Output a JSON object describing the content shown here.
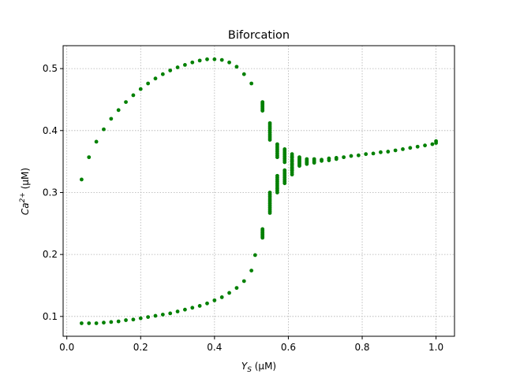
{
  "chart_data": {
    "type": "scatter",
    "title": "Biforcation",
    "xlabel_main": "Y",
    "xlabel_sub": "S",
    "xlabel_units": " (μM)",
    "ylabel_main": "Ca",
    "ylabel_sup": "2+",
    "ylabel_units": " (μM)",
    "xlim": [
      -0.01,
      1.05
    ],
    "ylim": [
      0.068,
      0.537
    ],
    "xticks": [
      0.0,
      0.2,
      0.4,
      0.6,
      0.8,
      1.0
    ],
    "xtick_labels": [
      "0.0",
      "0.2",
      "0.4",
      "0.6",
      "0.8",
      "1.0"
    ],
    "yticks": [
      0.1,
      0.2,
      0.3,
      0.4,
      0.5
    ],
    "ytick_labels": [
      "0.1",
      "0.2",
      "0.3",
      "0.4",
      "0.5"
    ],
    "grid": true,
    "marker_color": "#008000",
    "series": [
      {
        "x": [
          0.04,
          0.06,
          0.08,
          0.1,
          0.12,
          0.14,
          0.16,
          0.18,
          0.2,
          0.22,
          0.24,
          0.26,
          0.28,
          0.3,
          0.32,
          0.34,
          0.36,
          0.38,
          0.4,
          0.42,
          0.44,
          0.46,
          0.48,
          0.5
        ],
        "y": [
          0.321,
          0.357,
          0.382,
          0.402,
          0.419,
          0.433,
          0.446,
          0.457,
          0.467,
          0.476,
          0.484,
          0.491,
          0.497,
          0.502,
          0.506,
          0.51,
          0.513,
          0.515,
          0.515,
          0.514,
          0.51,
          0.503,
          0.491,
          0.476
        ]
      },
      {
        "x": [
          0.04,
          0.06,
          0.08,
          0.1,
          0.12,
          0.14,
          0.16,
          0.18,
          0.2,
          0.22,
          0.24,
          0.26,
          0.28,
          0.3,
          0.32,
          0.34,
          0.36,
          0.38,
          0.4,
          0.42,
          0.44,
          0.46,
          0.48,
          0.5,
          0.51
        ],
        "y": [
          0.089,
          0.089,
          0.089,
          0.09,
          0.091,
          0.092,
          0.094,
          0.095,
          0.097,
          0.099,
          0.101,
          0.103,
          0.105,
          0.108,
          0.111,
          0.114,
          0.117,
          0.121,
          0.126,
          0.131,
          0.138,
          0.146,
          0.157,
          0.174,
          0.199
        ]
      },
      {
        "x": [
          0.53,
          0.53,
          0.53,
          0.53,
          0.53,
          0.53,
          0.53,
          0.53,
          0.53,
          0.53,
          0.53,
          0.53,
          0.53,
          0.53,
          0.53,
          0.53
        ],
        "y": [
          0.436,
          0.438,
          0.44,
          0.442,
          0.444,
          0.446,
          0.235,
          0.233,
          0.231,
          0.229,
          0.237,
          0.239,
          0.434,
          0.432,
          0.227,
          0.241
        ]
      },
      {
        "x": [
          0.55,
          0.55,
          0.55,
          0.55,
          0.55,
          0.55,
          0.55,
          0.55,
          0.55,
          0.55,
          0.55,
          0.55,
          0.55,
          0.55,
          0.55,
          0.55,
          0.55,
          0.55,
          0.55,
          0.55,
          0.55,
          0.55
        ],
        "y": [
          0.412,
          0.409,
          0.406,
          0.403,
          0.4,
          0.397,
          0.394,
          0.391,
          0.388,
          0.385,
          0.27,
          0.273,
          0.276,
          0.279,
          0.282,
          0.285,
          0.288,
          0.291,
          0.294,
          0.297,
          0.3,
          0.267
        ]
      },
      {
        "x": [
          0.57,
          0.57,
          0.57,
          0.57,
          0.57,
          0.57,
          0.57,
          0.57,
          0.57,
          0.57,
          0.57,
          0.57,
          0.57,
          0.57,
          0.57,
          0.57,
          0.57,
          0.57
        ],
        "y": [
          0.378,
          0.375,
          0.372,
          0.369,
          0.366,
          0.363,
          0.36,
          0.357,
          0.3,
          0.303,
          0.306,
          0.309,
          0.312,
          0.315,
          0.318,
          0.321,
          0.324,
          0.327
        ]
      },
      {
        "x": [
          0.59,
          0.59,
          0.59,
          0.59,
          0.59,
          0.59,
          0.59,
          0.59,
          0.59,
          0.59,
          0.59,
          0.59,
          0.59,
          0.59,
          0.59,
          0.59
        ],
        "y": [
          0.37,
          0.367,
          0.364,
          0.361,
          0.358,
          0.355,
          0.352,
          0.349,
          0.315,
          0.318,
          0.321,
          0.324,
          0.327,
          0.33,
          0.333,
          0.336
        ]
      },
      {
        "x": [
          0.61,
          0.61,
          0.61,
          0.61,
          0.61,
          0.61,
          0.61,
          0.61,
          0.61,
          0.61,
          0.61,
          0.61,
          0.61,
          0.61,
          0.61,
          0.61,
          0.61
        ],
        "y": [
          0.362,
          0.359,
          0.356,
          0.353,
          0.35,
          0.347,
          0.344,
          0.341,
          0.338,
          0.335,
          0.332,
          0.329,
          0.345,
          0.34,
          0.336,
          0.351,
          0.357
        ]
      },
      {
        "x": [
          0.63,
          0.63,
          0.63,
          0.63,
          0.63,
          0.63,
          0.63,
          0.63
        ],
        "y": [
          0.357,
          0.355,
          0.353,
          0.351,
          0.349,
          0.347,
          0.345,
          0.343
        ]
      },
      {
        "x": [
          0.65,
          0.65,
          0.65,
          0.65,
          0.65,
          0.67,
          0.67,
          0.67,
          0.67
        ],
        "y": [
          0.354,
          0.352,
          0.35,
          0.348,
          0.346,
          0.354,
          0.352,
          0.35,
          0.348
        ]
      },
      {
        "x": [
          0.69,
          0.71,
          0.73,
          0.75,
          0.77,
          0.79,
          0.81,
          0.83,
          0.85,
          0.87,
          0.89,
          0.91,
          0.93,
          0.95,
          0.97,
          0.99,
          1.0
        ],
        "y": [
          0.353,
          0.355,
          0.356,
          0.357,
          0.359,
          0.36,
          0.362,
          0.363,
          0.365,
          0.366,
          0.368,
          0.37,
          0.372,
          0.374,
          0.376,
          0.378,
          0.38
        ]
      },
      {
        "x": [
          0.69,
          0.71,
          0.73,
          1.0
        ],
        "y": [
          0.351,
          0.352,
          0.354,
          0.383
        ]
      }
    ]
  }
}
